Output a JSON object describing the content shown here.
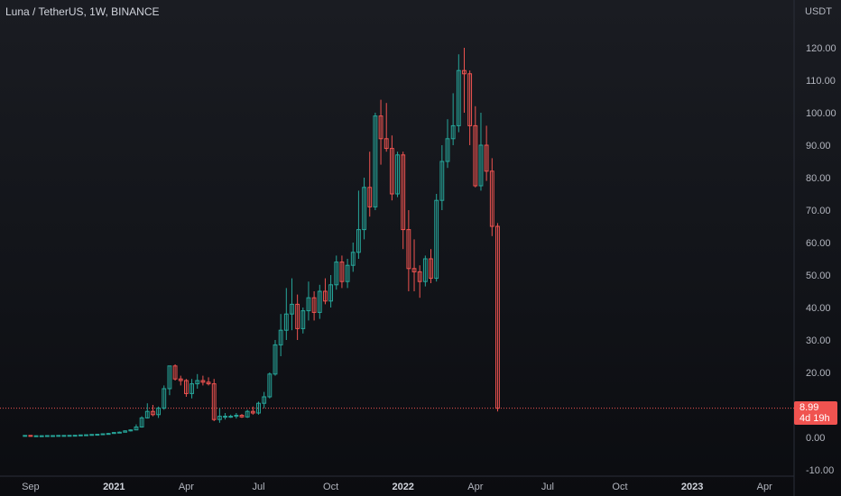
{
  "chart_title": "Luna / TetherUS, 1W, BINANCE",
  "axis_unit": "USDT",
  "last_price": {
    "value": "8.99",
    "countdown": "4d 19h"
  },
  "colors": {
    "up": "#26a69a",
    "down": "#ef5350",
    "background": "#131722",
    "text": "#b2b5be"
  },
  "chart_data": {
    "type": "candlestick",
    "ylim": [
      -10,
      125
    ],
    "y_ticks": [
      120,
      110,
      100,
      90,
      80,
      70,
      60,
      50,
      40,
      30,
      20,
      10,
      0,
      -10
    ],
    "y_tick_labels": [
      "120.00",
      "110.00",
      "100.00",
      "90.00",
      "80.00",
      "70.00",
      "60.00",
      "50.00",
      "40.00",
      "30.00",
      "20.00",
      "10.00",
      "0.00",
      "-10.00"
    ],
    "x_ticks": [
      {
        "label": "Sep",
        "index": 1,
        "bold": false
      },
      {
        "label": "2021",
        "index": 16,
        "bold": true
      },
      {
        "label": "Apr",
        "index": 29,
        "bold": false
      },
      {
        "label": "Jul",
        "index": 42,
        "bold": false
      },
      {
        "label": "Oct",
        "index": 55,
        "bold": false
      },
      {
        "label": "2022",
        "index": 68,
        "bold": true
      },
      {
        "label": "Apr",
        "index": 81,
        "bold": false
      },
      {
        "label": "Jul",
        "index": 94,
        "bold": false
      },
      {
        "label": "Oct",
        "index": 107,
        "bold": false
      },
      {
        "label": "2023",
        "index": 120,
        "bold": true
      },
      {
        "label": "Apr",
        "index": 133,
        "bold": false
      }
    ],
    "x_range": [
      -4.5,
      138
    ],
    "last_price_line": 8.99,
    "candles": [
      [
        0.6,
        0.7,
        0.5,
        0.6
      ],
      [
        0.6,
        0.6,
        0.4,
        0.5
      ],
      [
        0.5,
        0.6,
        0.4,
        0.5
      ],
      [
        0.5,
        0.6,
        0.4,
        0.5
      ],
      [
        0.5,
        0.6,
        0.4,
        0.55
      ],
      [
        0.55,
        0.6,
        0.5,
        0.55
      ],
      [
        0.55,
        0.65,
        0.5,
        0.6
      ],
      [
        0.6,
        0.65,
        0.5,
        0.6
      ],
      [
        0.6,
        0.7,
        0.5,
        0.62
      ],
      [
        0.62,
        0.7,
        0.55,
        0.65
      ],
      [
        0.65,
        0.8,
        0.6,
        0.75
      ],
      [
        0.75,
        0.85,
        0.65,
        0.8
      ],
      [
        0.8,
        0.95,
        0.7,
        0.9
      ],
      [
        0.9,
        1.0,
        0.8,
        0.95
      ],
      [
        0.95,
        1.2,
        0.9,
        1.1
      ],
      [
        1.1,
        1.4,
        1.0,
        1.2
      ],
      [
        1.2,
        1.6,
        1.1,
        1.5
      ],
      [
        1.5,
        1.8,
        1.3,
        1.6
      ],
      [
        1.6,
        2.2,
        1.5,
        2.0
      ],
      [
        2.0,
        2.5,
        1.8,
        2.3
      ],
      [
        2.3,
        4.0,
        2.2,
        3.2
      ],
      [
        3.2,
        6.5,
        3.0,
        6.0
      ],
      [
        6.0,
        10.5,
        5.8,
        8.0
      ],
      [
        8.0,
        10.0,
        6.5,
        7.0
      ],
      [
        7.0,
        9.5,
        6.0,
        9.0
      ],
      [
        9.0,
        16.0,
        8.5,
        15.0
      ],
      [
        15.0,
        22.0,
        13.0,
        22.0
      ],
      [
        22.0,
        22.5,
        17.5,
        18.0
      ],
      [
        18.0,
        19.0,
        16.0,
        17.5
      ],
      [
        17.5,
        18.0,
        12.5,
        13.5
      ],
      [
        13.5,
        18.0,
        12.0,
        16.5
      ],
      [
        16.5,
        19.5,
        15.0,
        17.5
      ],
      [
        17.5,
        19.0,
        16.0,
        17.0
      ],
      [
        17.0,
        18.5,
        16.0,
        16.5
      ],
      [
        16.5,
        18.0,
        5.0,
        5.5
      ],
      [
        5.5,
        9.0,
        4.5,
        6.5
      ],
      [
        6.5,
        7.5,
        5.5,
        6.5
      ],
      [
        6.5,
        7.0,
        6.0,
        6.5
      ],
      [
        6.5,
        7.5,
        5.8,
        6.8
      ],
      [
        6.8,
        7.2,
        6.0,
        6.3
      ],
      [
        6.3,
        8.5,
        6.0,
        8.0
      ],
      [
        8.0,
        9.5,
        7.0,
        7.5
      ],
      [
        7.5,
        11.0,
        7.0,
        10.5
      ],
      [
        10.5,
        14.0,
        9.0,
        12.5
      ],
      [
        12.5,
        20.0,
        12.0,
        19.5
      ],
      [
        19.5,
        30.0,
        19.0,
        28.5
      ],
      [
        28.5,
        38.0,
        25.0,
        33.0
      ],
      [
        33.0,
        46.0,
        30.0,
        38.0
      ],
      [
        38.0,
        49.0,
        33.0,
        41.0
      ],
      [
        41.0,
        44.0,
        30.0,
        33.5
      ],
      [
        33.5,
        40.0,
        32.0,
        39.0
      ],
      [
        39.0,
        48.0,
        36.0,
        43.0
      ],
      [
        43.0,
        45.0,
        36.0,
        38.5
      ],
      [
        38.5,
        47.0,
        36.5,
        45.0
      ],
      [
        45.0,
        49.0,
        41.0,
        42.0
      ],
      [
        42.0,
        50.0,
        40.0,
        47.0
      ],
      [
        47.0,
        56.0,
        45.5,
        54.0
      ],
      [
        54.0,
        56.0,
        46.0,
        48.0
      ],
      [
        48.0,
        55.0,
        46.0,
        53.0
      ],
      [
        53.0,
        60.0,
        51.0,
        57.0
      ],
      [
        57.0,
        76.0,
        55.0,
        64.0
      ],
      [
        64.0,
        80.0,
        61.0,
        77.0
      ],
      [
        77.0,
        88.0,
        68.0,
        71.0
      ],
      [
        71.0,
        100.0,
        70.0,
        99.0
      ],
      [
        99.0,
        104.0,
        84.0,
        92.0
      ],
      [
        92.0,
        103.0,
        88.0,
        89.0
      ],
      [
        89.0,
        93.0,
        73.0,
        75.0
      ],
      [
        75.0,
        88.0,
        74.0,
        87.0
      ],
      [
        87.0,
        88.0,
        58.0,
        64.0
      ],
      [
        64.0,
        70.0,
        45.0,
        52.0
      ],
      [
        52.0,
        61.0,
        45.0,
        51.0
      ],
      [
        51.0,
        53.0,
        43.0,
        48.0
      ],
      [
        48.0,
        56.0,
        46.5,
        55.0
      ],
      [
        55.0,
        58.0,
        47.5,
        49.0
      ],
      [
        49.0,
        75.0,
        48.0,
        73.0
      ],
      [
        73.0,
        90.0,
        70.0,
        85.0
      ],
      [
        85.0,
        98.0,
        83.0,
        92.0
      ],
      [
        92.0,
        106.0,
        90.0,
        96.0
      ],
      [
        96.0,
        118.0,
        94.0,
        113.0
      ],
      [
        113.0,
        120.0,
        100.0,
        112.0
      ],
      [
        112.0,
        113.0,
        90.0,
        96.0
      ],
      [
        96.0,
        102.0,
        77.0,
        77.5
      ],
      [
        77.5,
        100.0,
        76.0,
        90.0
      ],
      [
        90.0,
        96.0,
        79.0,
        82.0
      ],
      [
        82.0,
        86.0,
        62.0,
        65.0
      ],
      [
        65.0,
        66.0,
        8.0,
        8.99
      ]
    ]
  }
}
